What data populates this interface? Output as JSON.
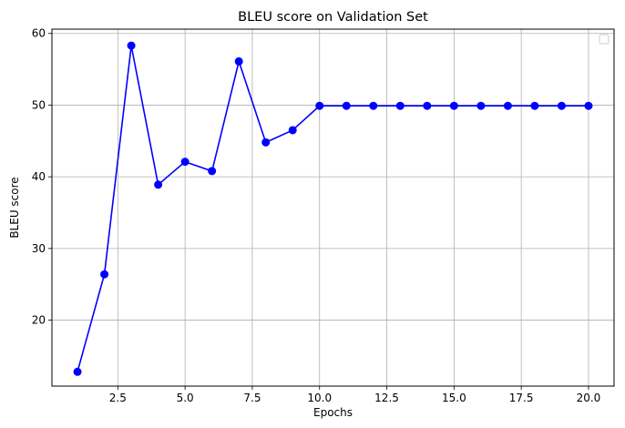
{
  "chart_data": {
    "type": "line",
    "title": "BLEU score on Validation Set",
    "xlabel": "Epochs",
    "ylabel": "BLEU score",
    "xlim": [
      0.05,
      20.95
    ],
    "ylim": [
      10.8,
      60.6
    ],
    "xticks": [
      2.5,
      5.0,
      7.5,
      10.0,
      12.5,
      15.0,
      17.5,
      20.0
    ],
    "xtick_labels": [
      "2.5",
      "5.0",
      "7.5",
      "10.0",
      "12.5",
      "15.0",
      "17.5",
      "20.0"
    ],
    "yticks": [
      20,
      30,
      40,
      50,
      60
    ],
    "ytick_labels": [
      "20",
      "30",
      "40",
      "50",
      "60"
    ],
    "grid": true,
    "legend": "top-right (empty)",
    "series": [
      {
        "color": "#0000ff",
        "marker": "circle",
        "x": [
          1,
          2,
          3,
          4,
          5,
          6,
          7,
          8,
          9,
          10,
          11,
          12,
          13,
          14,
          15,
          16,
          17,
          18,
          19,
          20
        ],
        "values": [
          12.8,
          26.4,
          58.3,
          38.9,
          42.1,
          40.8,
          56.1,
          44.8,
          46.5,
          49.9,
          49.9,
          49.9,
          49.9,
          49.9,
          49.9,
          49.9,
          49.9,
          49.9,
          49.9,
          49.9
        ]
      }
    ]
  }
}
